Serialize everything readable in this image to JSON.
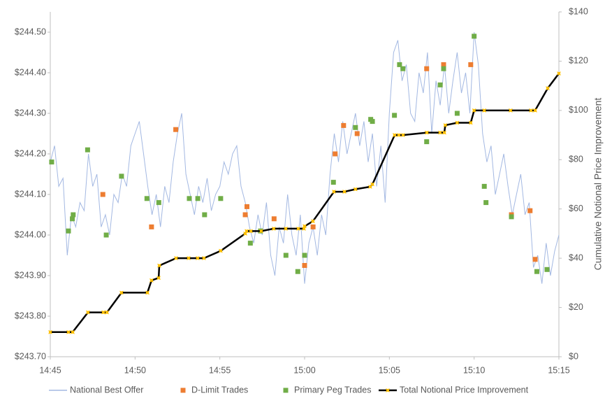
{
  "chart_data": {
    "type": "line",
    "y2label": "Cumulative  Notional Price Improvement",
    "xlim": [
      0,
      30
    ],
    "xticks": [
      {
        "value": 0,
        "label": "14:45"
      },
      {
        "value": 5,
        "label": "14:50"
      },
      {
        "value": 10,
        "label": "14:55"
      },
      {
        "value": 15,
        "label": "15:00"
      },
      {
        "value": 20,
        "label": "15:05"
      },
      {
        "value": 25,
        "label": "15:10"
      },
      {
        "value": 30,
        "label": "15:15"
      }
    ],
    "ylim": [
      243.7,
      244.55
    ],
    "yticks": [
      {
        "value": 243.7,
        "label": "$243.70"
      },
      {
        "value": 243.8,
        "label": "$243.80"
      },
      {
        "value": 243.9,
        "label": "$243.90"
      },
      {
        "value": 244.0,
        "label": "$244.00"
      },
      {
        "value": 244.1,
        "label": "$244.10"
      },
      {
        "value": 244.2,
        "label": "$244.20"
      },
      {
        "value": 244.3,
        "label": "$244.30"
      },
      {
        "value": 244.4,
        "label": "$244.40"
      },
      {
        "value": 244.5,
        "label": "$244.50"
      }
    ],
    "y2lim": [
      0,
      140
    ],
    "y2ticks": [
      {
        "value": 0,
        "label": "$0"
      },
      {
        "value": 20,
        "label": "$20"
      },
      {
        "value": 40,
        "label": "$40"
      },
      {
        "value": 60,
        "label": "$60"
      },
      {
        "value": 80,
        "label": "$80"
      },
      {
        "value": 100,
        "label": "$100"
      },
      {
        "value": 120,
        "label": "$120"
      },
      {
        "value": 140,
        "label": "$140"
      }
    ],
    "series": [
      {
        "name": "National Best Offer",
        "type": "line",
        "color": "#a3b8e2",
        "x": [
          0,
          0.25,
          0.5,
          0.75,
          1,
          1.25,
          1.5,
          1.75,
          2,
          2.25,
          2.5,
          2.75,
          3,
          3.25,
          3.5,
          3.75,
          4,
          4.25,
          4.5,
          4.75,
          5,
          5.25,
          5.5,
          5.75,
          6,
          6.25,
          6.5,
          6.75,
          7,
          7.25,
          7.5,
          7.75,
          8,
          8.25,
          8.5,
          8.75,
          9,
          9.25,
          9.5,
          9.75,
          10,
          10.25,
          10.5,
          10.75,
          11,
          11.25,
          11.5,
          11.75,
          12,
          12.25,
          12.5,
          12.75,
          13,
          13.25,
          13.5,
          13.75,
          14,
          14.25,
          14.5,
          14.75,
          15,
          15.25,
          15.5,
          15.75,
          16,
          16.25,
          16.5,
          16.75,
          17,
          17.25,
          17.5,
          17.75,
          18,
          18.25,
          18.5,
          18.75,
          19,
          19.25,
          19.5,
          19.75,
          20,
          20.25,
          20.5,
          20.75,
          21,
          21.25,
          21.5,
          21.75,
          22,
          22.25,
          22.5,
          22.75,
          23,
          23.25,
          23.5,
          23.75,
          24,
          24.25,
          24.5,
          24.75,
          25,
          25.25,
          25.5,
          25.75,
          26,
          26.25,
          26.5,
          26.75,
          27,
          27.25,
          27.5,
          27.75,
          28,
          28.25,
          28.5,
          28.75,
          29,
          29.25,
          29.5,
          29.75,
          30
        ],
        "values": [
          244.18,
          244.22,
          244.12,
          244.14,
          243.95,
          244.05,
          244.02,
          244.08,
          244.06,
          244.2,
          244.12,
          244.15,
          244.02,
          244.05,
          244.0,
          244.1,
          244.08,
          244.15,
          244.12,
          244.22,
          244.25,
          244.28,
          244.2,
          244.12,
          244.05,
          244.1,
          244.02,
          244.12,
          244.08,
          244.18,
          244.25,
          244.3,
          244.15,
          244.1,
          244.05,
          244.12,
          244.08,
          244.14,
          244.06,
          244.1,
          244.12,
          244.18,
          244.15,
          244.2,
          244.22,
          244.12,
          244.08,
          244.02,
          243.98,
          244.05,
          244.0,
          244.08,
          243.95,
          243.9,
          244.02,
          243.98,
          244.1,
          244.0,
          243.95,
          244.05,
          243.88,
          243.98,
          244.02,
          243.95,
          244.05,
          244.0,
          244.15,
          244.25,
          244.18,
          244.28,
          244.2,
          244.25,
          244.3,
          244.22,
          244.28,
          244.18,
          244.25,
          244.12,
          244.22,
          244.08,
          244.3,
          244.45,
          244.48,
          244.38,
          244.42,
          244.3,
          244.28,
          244.4,
          244.35,
          244.45,
          244.25,
          244.38,
          244.32,
          244.42,
          244.3,
          244.38,
          244.45,
          244.35,
          244.4,
          244.3,
          244.5,
          244.42,
          244.25,
          244.18,
          244.22,
          244.1,
          244.15,
          244.2,
          244.12,
          244.05,
          244.1,
          244.15,
          244.05,
          244.08,
          243.92,
          243.95,
          243.88,
          243.98,
          243.9,
          243.96,
          244.0
        ]
      },
      {
        "name": "D-Limit Trades",
        "type": "scatter",
        "color": "#ed7d31",
        "x": [
          3.1,
          5.97,
          7.4,
          11.5,
          11.6,
          13.2,
          15.0,
          15.5,
          16.8,
          17.3,
          18.1,
          22.2,
          23.2,
          24.8,
          27.2,
          28.3,
          28.6
        ],
        "values": [
          244.1,
          244.02,
          244.26,
          244.05,
          244.07,
          244.04,
          243.925,
          244.02,
          244.2,
          244.27,
          244.25,
          244.41,
          244.42,
          244.42,
          244.05,
          244.06,
          243.94
        ]
      },
      {
        "name": "Primary Peg Trades",
        "type": "scatter",
        "color": "#70ad47",
        "x": [
          0.08,
          1.07,
          1.3,
          1.35,
          2.2,
          3.3,
          4.2,
          5.7,
          6.4,
          8.2,
          8.7,
          9.1,
          10.05,
          11.8,
          12.4,
          13.9,
          14.6,
          15.0,
          16.7,
          18.0,
          18.9,
          19.0,
          20.3,
          20.6,
          20.8,
          22.2,
          23.0,
          23.2,
          24.0,
          25.0,
          25.6,
          25.7,
          27.2,
          28.7,
          29.3
        ],
        "values": [
          244.18,
          244.01,
          244.04,
          244.05,
          244.21,
          244.0,
          244.145,
          244.09,
          244.08,
          244.09,
          244.09,
          244.05,
          244.09,
          243.98,
          244.01,
          243.95,
          243.91,
          243.95,
          244.13,
          244.265,
          244.285,
          244.28,
          244.295,
          244.42,
          244.41,
          244.23,
          244.37,
          244.41,
          244.3,
          244.49,
          244.12,
          244.08,
          244.045,
          243.91,
          243.915
        ]
      },
      {
        "name": "Total Notional Price Improvement",
        "type": "line",
        "axis": "y2",
        "color": "#000000",
        "marker_color": "#ffc000",
        "x": [
          0,
          1.07,
          1.32,
          2.22,
          3.13,
          3.34,
          4.2,
          5.73,
          5.97,
          6.39,
          6.43,
          7.42,
          8.16,
          8.69,
          9.06,
          10.05,
          11.5,
          11.58,
          11.83,
          12.44,
          13.18,
          13.89,
          14.63,
          14.96,
          15.0,
          15.49,
          16.73,
          17.35,
          18.0,
          18.87,
          19.0,
          20.31,
          20.56,
          20.81,
          22.21,
          22.99,
          23.24,
          23.3,
          24.0,
          24.8,
          25.0,
          25.6,
          27.15,
          28.35,
          28.6,
          29.34,
          30
        ],
        "values": [
          10,
          10,
          10,
          18,
          18,
          18,
          26,
          26,
          31,
          32,
          37,
          40,
          40,
          40,
          40,
          43,
          50,
          51,
          51,
          51,
          52,
          52,
          52,
          52,
          53,
          55,
          67,
          67,
          68,
          69,
          70,
          90,
          90,
          90,
          91,
          91,
          91,
          94,
          95,
          95,
          100,
          100,
          100,
          100,
          100,
          109,
          115
        ]
      }
    ]
  }
}
